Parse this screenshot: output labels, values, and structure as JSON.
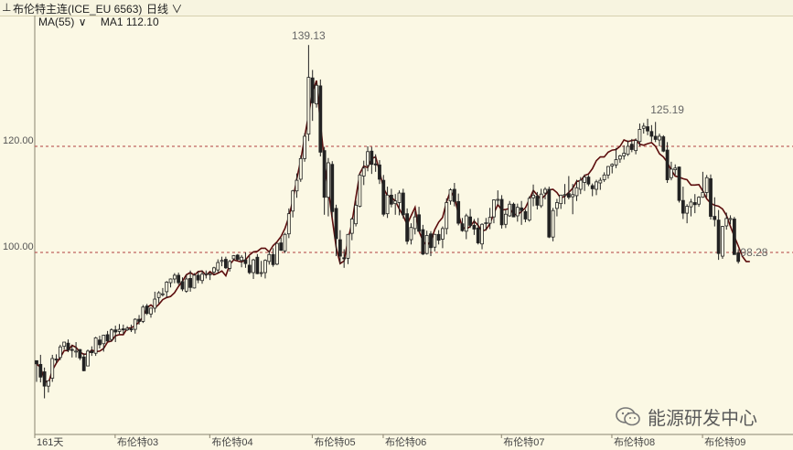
{
  "topbar": {
    "menu_glyph": "⊥",
    "symbol_title": "布伦特主连(ICE_EU 6563)",
    "period_label": "日线",
    "chevron_glyph": "∨"
  },
  "indicator": {
    "ma_label": "MA(55)",
    "chevron_glyph": "∨",
    "ma_value_label": "MA1 112.10"
  },
  "watermark": {
    "text": "能源研发中心"
  },
  "colors": {
    "background": "#fbf8e4",
    "candle": "#222222",
    "ma_line": "#5c0d0d",
    "grid": "#b04040",
    "axis_text": "#555555",
    "annotation_text": "#666666"
  },
  "chart_data": {
    "type": "candlestick",
    "title": "布伦特主连(ICE_EU 6563)",
    "period": "日线",
    "ylim": [
      72,
      146
    ],
    "y_ticks": [
      100,
      120
    ],
    "y_tick_labels": [
      "100.00",
      "120.00"
    ],
    "grid": "horizontal dashed at 100 and 120",
    "x_labels": [
      "161天",
      "布伦特03",
      "布伦特04",
      "布伦特05",
      "布伦特06",
      "布伦特07",
      "布伦特08",
      "布伦特09"
    ],
    "x_label_positions": [
      0,
      19,
      43,
      69,
      87,
      117,
      145,
      168
    ],
    "annotations": [
      {
        "label": "139.13",
        "index": 69,
        "value": 139.13
      },
      {
        "label": "125.19",
        "index": 160,
        "value": 125.19
      },
      {
        "label": "98.28",
        "index": 182,
        "value": 98.28
      }
    ],
    "close": [
      79,
      78.3,
      76.0,
      75.3,
      77.8,
      79.1,
      80.2,
      81.5,
      81.5,
      82.5,
      82.1,
      81.2,
      80.8,
      80.9,
      81.6,
      81.3,
      81.4,
      81.9,
      83.1,
      83.3,
      84.3,
      84.5,
      84.5,
      85.7,
      85.8,
      86.2,
      86.9,
      87.9,
      89.6,
      90.1,
      89.5,
      90.2,
      91.1,
      91.5,
      91.7,
      92.4,
      93.6,
      94.6,
      95.8,
      96.2,
      95.7,
      96.4,
      96.5,
      95.7,
      96.4,
      95.8,
      96.1,
      96.5,
      95.6,
      97.7,
      98.6,
      98.4,
      98.2,
      98.6,
      99.5,
      100.1,
      100.2,
      100.8,
      100.8,
      100.1,
      101.3,
      102.0,
      103.0,
      104.5,
      106.7,
      109.8,
      113.9,
      117.4,
      121.8,
      126.0,
      130.2,
      132.4,
      124.4,
      117.2,
      112.0,
      106.4,
      100.9,
      97.9,
      98.4,
      102.4,
      105.6,
      110.4,
      114.9,
      116.3,
      116.0,
      117.7,
      118.0,
      115.3,
      112.1,
      110.7,
      110.4,
      109.7,
      108.2,
      106.9,
      105.3,
      106.9,
      108.5,
      104.0,
      102.2,
      101.3,
      102.1,
      104.3,
      105.7,
      106.6,
      109.5,
      111.6,
      110.4,
      107.2,
      104.8,
      104.4,
      104.9,
      105.9,
      105.1,
      104.0,
      104.3,
      105.4,
      107.4,
      109.0,
      108.0,
      108.1,
      108.3,
      107.2,
      107.1,
      107.7,
      108.4,
      110.0,
      111.7,
      110.8,
      110.0,
      110.8,
      111.8,
      111.9,
      111.3,
      110.2,
      110.6,
      111.3,
      112.1,
      113.4,
      113.5,
      114.5,
      114.8,
      115.8,
      117.3,
      118.0,
      118.0,
      118.9,
      119.3,
      119.4,
      120.0,
      121.2,
      120.9,
      121.1,
      121.2,
      120.4,
      120.2,
      120.5,
      120.7,
      120.0,
      118.6,
      118.0,
      117.0,
      115.5,
      114.4,
      114.2,
      113.9,
      113.7,
      112.7,
      112.7,
      112.8,
      111.6,
      110.1,
      109.3,
      108.9,
      108.7,
      108.2,
      107.0,
      104.9,
      103.0,
      101.2,
      99.3,
      98.3
    ],
    "ohlc": [
      [
        79.6,
        79.6,
        75.6,
        79.0
      ],
      [
        78.9,
        80.7,
        75.5,
        76.5
      ],
      [
        77.5,
        78.3,
        72.5,
        74.8
      ],
      [
        74.8,
        75.9,
        73.6,
        75.8
      ],
      [
        76.3,
        80.7,
        75.6,
        80.0
      ],
      [
        79.9,
        80.8,
        79.1,
        79.8
      ],
      [
        80.2,
        82.6,
        79.7,
        82.2
      ],
      [
        82.3,
        83.1,
        81.7,
        83.1
      ],
      [
        82.9,
        83.6,
        81.2,
        81.6
      ],
      [
        81.7,
        82.5,
        80.2,
        81.6
      ],
      [
        81.4,
        83.1,
        80.2,
        81.4
      ],
      [
        81.7,
        81.8,
        79.7,
        80.1
      ],
      [
        80.3,
        81.0,
        77.6,
        77.7
      ],
      [
        78.6,
        81.7,
        78.6,
        81.4
      ],
      [
        81.4,
        82.3,
        80.5,
        81.1
      ],
      [
        81.0,
        84.1,
        80.5,
        83.9
      ],
      [
        83.5,
        84.3,
        81.9,
        82.6
      ],
      [
        82.8,
        84.5,
        81.3,
        84.4
      ],
      [
        84.5,
        85.2,
        83.2,
        83.3
      ],
      [
        83.6,
        85.7,
        83.2,
        85.4
      ],
      [
        85.4,
        86.2,
        83.1,
        85.0
      ],
      [
        85.1,
        86.5,
        84.6,
        85.5
      ],
      [
        85.6,
        86.4,
        84.6,
        85.4
      ],
      [
        85.4,
        86.1,
        85.2,
        85.7
      ],
      [
        85.6,
        86.4,
        85.0,
        85.4
      ],
      [
        85.5,
        87.6,
        84.7,
        87.4
      ],
      [
        87.4,
        88.2,
        86.4,
        87.0
      ],
      [
        87.0,
        90.1,
        86.7,
        89.7
      ],
      [
        89.9,
        90.3,
        88.2,
        88.5
      ],
      [
        88.4,
        89.6,
        87.7,
        89.5
      ],
      [
        89.5,
        92.6,
        88.7,
        91.2
      ],
      [
        91.5,
        92.7,
        90.4,
        92.4
      ],
      [
        92.2,
        93.3,
        91.7,
        92.2
      ],
      [
        92.6,
        94.6,
        91.5,
        94.4
      ],
      [
        94.3,
        95.1,
        93.4,
        95.0
      ],
      [
        95.0,
        96.1,
        94.2,
        95.7
      ],
      [
        95.7,
        96.2,
        93.9,
        94.3
      ],
      [
        94.5,
        95.3,
        92.7,
        93.1
      ],
      [
        92.7,
        95.8,
        92.4,
        95.0
      ],
      [
        95.1,
        96.6,
        92.6,
        93.4
      ],
      [
        93.3,
        96.1,
        93.2,
        95.7
      ],
      [
        95.7,
        96.5,
        94.2,
        94.8
      ],
      [
        94.7,
        96.6,
        94.1,
        95.9
      ],
      [
        95.9,
        96.6,
        95.1,
        96.0
      ],
      [
        95.8,
        96.3,
        94.8,
        96.0
      ],
      [
        96.3,
        97.3,
        95.8,
        97.1
      ],
      [
        96.7,
        98.7,
        96.1,
        98.1
      ],
      [
        98.3,
        99.2,
        97.4,
        98.5
      ],
      [
        98.7,
        99.2,
        96.9,
        97.1
      ],
      [
        97.0,
        98.6,
        96.4,
        98.3
      ],
      [
        98.8,
        99.5,
        98.5,
        99.4
      ],
      [
        99.5,
        99.7,
        98.5,
        98.7
      ],
      [
        98.5,
        99.5,
        97.2,
        99.1
      ],
      [
        98.6,
        100.0,
        97.1,
        97.9
      ],
      [
        97.6,
        99.3,
        95.9,
        96.2
      ],
      [
        96.2,
        98.8,
        95.0,
        98.6
      ],
      [
        99.1,
        99.7,
        95.9,
        96.0
      ],
      [
        96.2,
        98.4,
        95.4,
        96.2
      ],
      [
        96.2,
        98.7,
        95.1,
        98.5
      ],
      [
        98.3,
        100.3,
        97.7,
        99.6
      ],
      [
        99.6,
        100.8,
        97.3,
        97.7
      ],
      [
        97.8,
        101.8,
        97.6,
        101.7
      ],
      [
        101.8,
        102.8,
        100.3,
        100.4
      ],
      [
        100.3,
        103.7,
        99.9,
        103.4
      ],
      [
        103.5,
        108.3,
        102.7,
        107.3
      ],
      [
        107.8,
        111.8,
        106.6,
        111.6
      ],
      [
        111.6,
        114.9,
        110.3,
        113.6
      ],
      [
        113.8,
        118.3,
        113.3,
        117.7
      ],
      [
        117.7,
        122.5,
        117.1,
        121.9
      ],
      [
        122.3,
        139.1,
        121.0,
        133.0
      ],
      [
        132.9,
        134.4,
        124.8,
        128.2
      ],
      [
        128.0,
        132.0,
        127.3,
        131.5
      ],
      [
        131.4,
        132.6,
        118.1,
        118.9
      ],
      [
        119.2,
        119.9,
        107.1,
        110.4
      ],
      [
        110.4,
        117.8,
        106.8,
        116.9
      ],
      [
        116.6,
        117.2,
        106.6,
        107.7
      ],
      [
        108.3,
        109.0,
        99.3,
        102.6
      ],
      [
        102.4,
        104.2,
        97.9,
        99.3
      ],
      [
        99.0,
        100.6,
        97.1,
        98.8
      ],
      [
        98.9,
        103.5,
        97.8,
        103.4
      ],
      [
        103.6,
        106.6,
        102.3,
        106.3
      ],
      [
        105.4,
        109.8,
        104.9,
        108.9
      ],
      [
        108.7,
        114.9,
        108.5,
        114.6
      ],
      [
        114.4,
        117.3,
        112.7,
        115.9
      ],
      [
        116.4,
        120.0,
        115.3,
        119.0
      ],
      [
        119.1,
        119.9,
        114.8,
        116.6
      ],
      [
        116.7,
        118.5,
        115.2,
        116.5
      ],
      [
        116.5,
        117.4,
        112.9,
        113.8
      ],
      [
        113.6,
        114.6,
        106.8,
        107.2
      ],
      [
        107.3,
        112.4,
        106.5,
        110.8
      ],
      [
        110.8,
        112.0,
        108.5,
        109.1
      ],
      [
        109.2,
        111.0,
        107.1,
        109.7
      ],
      [
        109.4,
        111.7,
        107.0,
        111.2
      ],
      [
        111.2,
        112.0,
        106.4,
        107.1
      ],
      [
        107.3,
        108.3,
        101.5,
        102.1
      ],
      [
        102.4,
        105.5,
        101.5,
        104.7
      ],
      [
        104.5,
        107.8,
        103.4,
        106.7
      ],
      [
        107.1,
        108.6,
        103.9,
        104.0
      ],
      [
        104.3,
        105.2,
        99.5,
        99.7
      ],
      [
        99.8,
        104.1,
        99.6,
        103.2
      ],
      [
        103.5,
        104.0,
        99.3,
        100.9
      ],
      [
        101.0,
        103.5,
        100.2,
        103.4
      ],
      [
        103.4,
        104.2,
        101.5,
        102.3
      ],
      [
        102.5,
        104.9,
        100.8,
        104.5
      ],
      [
        104.5,
        110.2,
        103.4,
        109.4
      ],
      [
        109.7,
        112.1,
        109.0,
        111.8
      ],
      [
        111.9,
        113.1,
        108.7,
        109.6
      ],
      [
        109.6,
        111.1,
        105.1,
        105.5
      ],
      [
        105.4,
        106.5,
        103.9,
        104.1
      ],
      [
        104.0,
        107.3,
        102.5,
        106.9
      ],
      [
        106.7,
        108.2,
        104.6,
        105.1
      ],
      [
        105.1,
        106.3,
        103.3,
        104.4
      ],
      [
        104.6,
        106.5,
        101.5,
        101.8
      ],
      [
        101.6,
        105.5,
        100.6,
        105.3
      ],
      [
        105.5,
        106.5,
        104.1,
        105.6
      ],
      [
        105.5,
        108.4,
        104.4,
        106.6
      ],
      [
        106.7,
        110.0,
        105.5,
        109.9
      ],
      [
        109.9,
        111.7,
        108.9,
        110.0
      ],
      [
        110.0,
        110.8,
        104.5,
        105.2
      ],
      [
        105.3,
        108.1,
        104.6,
        107.2
      ],
      [
        106.9,
        109.7,
        106.7,
        109.1
      ],
      [
        109.1,
        109.4,
        106.7,
        106.7
      ],
      [
        106.9,
        109.2,
        105.8,
        108.5
      ],
      [
        108.4,
        109.7,
        105.2,
        107.9
      ],
      [
        107.7,
        108.1,
        105.7,
        106.3
      ],
      [
        106.1,
        110.6,
        105.8,
        110.2
      ],
      [
        110.3,
        112.8,
        108.7,
        110.8
      ],
      [
        110.6,
        111.4,
        108.1,
        108.9
      ],
      [
        108.8,
        112.0,
        108.4,
        111.0
      ],
      [
        111.2,
        112.3,
        110.0,
        111.9
      ],
      [
        111.9,
        112.4,
        102.7,
        102.9
      ],
      [
        102.9,
        108.4,
        102.1,
        107.9
      ],
      [
        108.3,
        110.1,
        106.8,
        109.4
      ],
      [
        109.2,
        110.9,
        108.2,
        110.8
      ],
      [
        110.8,
        112.9,
        109.1,
        110.9
      ],
      [
        111.1,
        114.4,
        110.0,
        110.4
      ],
      [
        110.5,
        112.9,
        107.2,
        110.9
      ],
      [
        110.7,
        113.7,
        109.7,
        112.2
      ],
      [
        111.9,
        114.2,
        111.0,
        113.6
      ],
      [
        113.2,
        114.7,
        111.6,
        114.2
      ],
      [
        114.2,
        114.6,
        112.5,
        112.9
      ],
      [
        112.6,
        113.0,
        110.6,
        112.0
      ],
      [
        111.9,
        113.7,
        110.8,
        113.3
      ],
      [
        113.1,
        114.1,
        111.8,
        113.6
      ],
      [
        113.7,
        115.1,
        113.3,
        114.6
      ],
      [
        114.6,
        116.3,
        113.9,
        116.2
      ],
      [
        116.3,
        116.8,
        114.9,
        116.6
      ],
      [
        116.5,
        119.7,
        115.9,
        117.5
      ],
      [
        117.6,
        118.4,
        116.9,
        118.2
      ],
      [
        118.2,
        120.2,
        117.5,
        118.7
      ],
      [
        118.5,
        121.1,
        118.2,
        120.0
      ],
      [
        120.4,
        121.4,
        118.9,
        119.4
      ],
      [
        119.2,
        121.5,
        118.5,
        121.1
      ],
      [
        120.9,
        124.3,
        120.0,
        123.2
      ],
      [
        123.4,
        124.4,
        122.4,
        123.8
      ],
      [
        123.7,
        125.2,
        122.1,
        122.9
      ],
      [
        122.8,
        124.0,
        120.9,
        121.9
      ],
      [
        121.9,
        124.6,
        120.8,
        121.3
      ],
      [
        121.2,
        122.4,
        120.0,
        121.9
      ],
      [
        121.8,
        122.1,
        118.9,
        119.1
      ],
      [
        119.3,
        120.8,
        113.1,
        113.7
      ],
      [
        114.1,
        117.1,
        113.6,
        115.7
      ],
      [
        115.6,
        116.6,
        114.6,
        115.9
      ],
      [
        116.1,
        116.2,
        109.4,
        109.8
      ],
      [
        109.8,
        112.4,
        106.3,
        107.4
      ],
      [
        107.4,
        109.1,
        105.5,
        108.7
      ],
      [
        108.6,
        110.1,
        106.8,
        109.5
      ],
      [
        109.4,
        111.0,
        107.4,
        109.0
      ],
      [
        109.1,
        110.6,
        108.6,
        110.4
      ],
      [
        110.4,
        115.2,
        110.3,
        111.3
      ],
      [
        111.3,
        114.6,
        110.4,
        114.1
      ],
      [
        113.9,
        114.7,
        106.2,
        106.8
      ],
      [
        106.8,
        110.4,
        104.9,
        106.2
      ],
      [
        106.1,
        108.0,
        98.6,
        99.8
      ],
      [
        99.3,
        105.0,
        98.8,
        104.9
      ],
      [
        105.0,
        107.5,
        104.3,
        106.4
      ],
      [
        106.2,
        107.0,
        105.3,
        106.4
      ],
      [
        106.3,
        106.7,
        99.6,
        99.6
      ],
      [
        99.9,
        100.6,
        97.9,
        98.3
      ]
    ],
    "ma_label": "MA(55)",
    "ma_last_value": 112.1
  }
}
